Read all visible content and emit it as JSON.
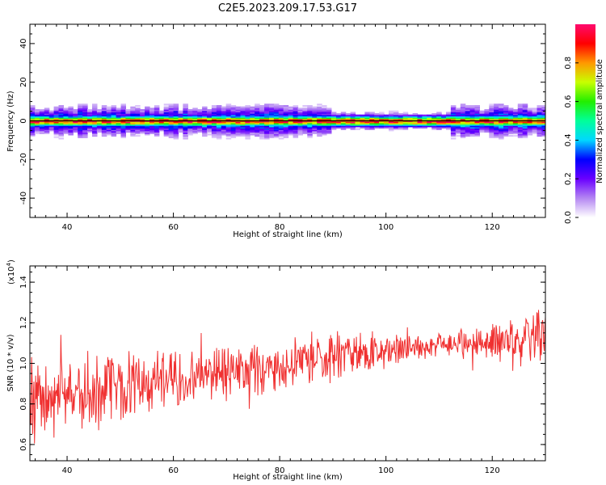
{
  "figure": {
    "title": "C2E5.2023.209.17.53.G17"
  },
  "chart_data": [
    {
      "type": "heatmap",
      "xlabel": "Height of straight line (km)",
      "ylabel": "Frequency (Hz)",
      "xlim": [
        33,
        130
      ],
      "ylim": [
        -50,
        50
      ],
      "xticks": [
        "40",
        "60",
        "80",
        "100",
        "120"
      ],
      "yticks": [
        "-40",
        "-20",
        "0",
        "20",
        "40"
      ],
      "colorbar": {
        "label": "Normalized spectral amplitude",
        "range": [
          0,
          1
        ],
        "ticks": [
          "0.0",
          "0.2",
          "0.4",
          "0.6",
          "0.8"
        ],
        "colors": [
          "#ffffff",
          "#b486f2",
          "#6a00ff",
          "#0000ff",
          "#00d8ff",
          "#00ff9a",
          "#22ee00",
          "#c8ff00",
          "#ff9800",
          "#ff0000",
          "#ff0a6e"
        ]
      },
      "band": {
        "center_hz": 0,
        "core_halfwidth_hz": 1.5,
        "spread_halfwidth_hz": 5.5
      },
      "reference_line": {
        "y": 0,
        "color": "#000000"
      }
    },
    {
      "type": "line",
      "xlabel": "Height of straight line (km)",
      "ylabel": "SNR (10 * v/v)",
      "scale_note": "(x10",
      "scale_exponent": "4",
      "scale_close": ")",
      "xlim": [
        33,
        130
      ],
      "ylim": [
        0.52,
        1.48
      ],
      "xticks": [
        "40",
        "60",
        "80",
        "100",
        "120"
      ],
      "yticks": [
        "0.6",
        "0.8",
        "1.0",
        "1.2",
        "1.4"
      ],
      "series": [
        {
          "color": "#f03030",
          "trend_x": [
            33,
            50,
            70,
            90,
            110,
            130
          ],
          "trend_y": [
            0.83,
            0.88,
            0.95,
            1.03,
            1.09,
            1.14
          ],
          "noise_amplitude_x": [
            33,
            90,
            110,
            130
          ],
          "noise_amplitude_y": [
            0.2,
            0.14,
            0.06,
            0.16
          ]
        }
      ]
    }
  ]
}
